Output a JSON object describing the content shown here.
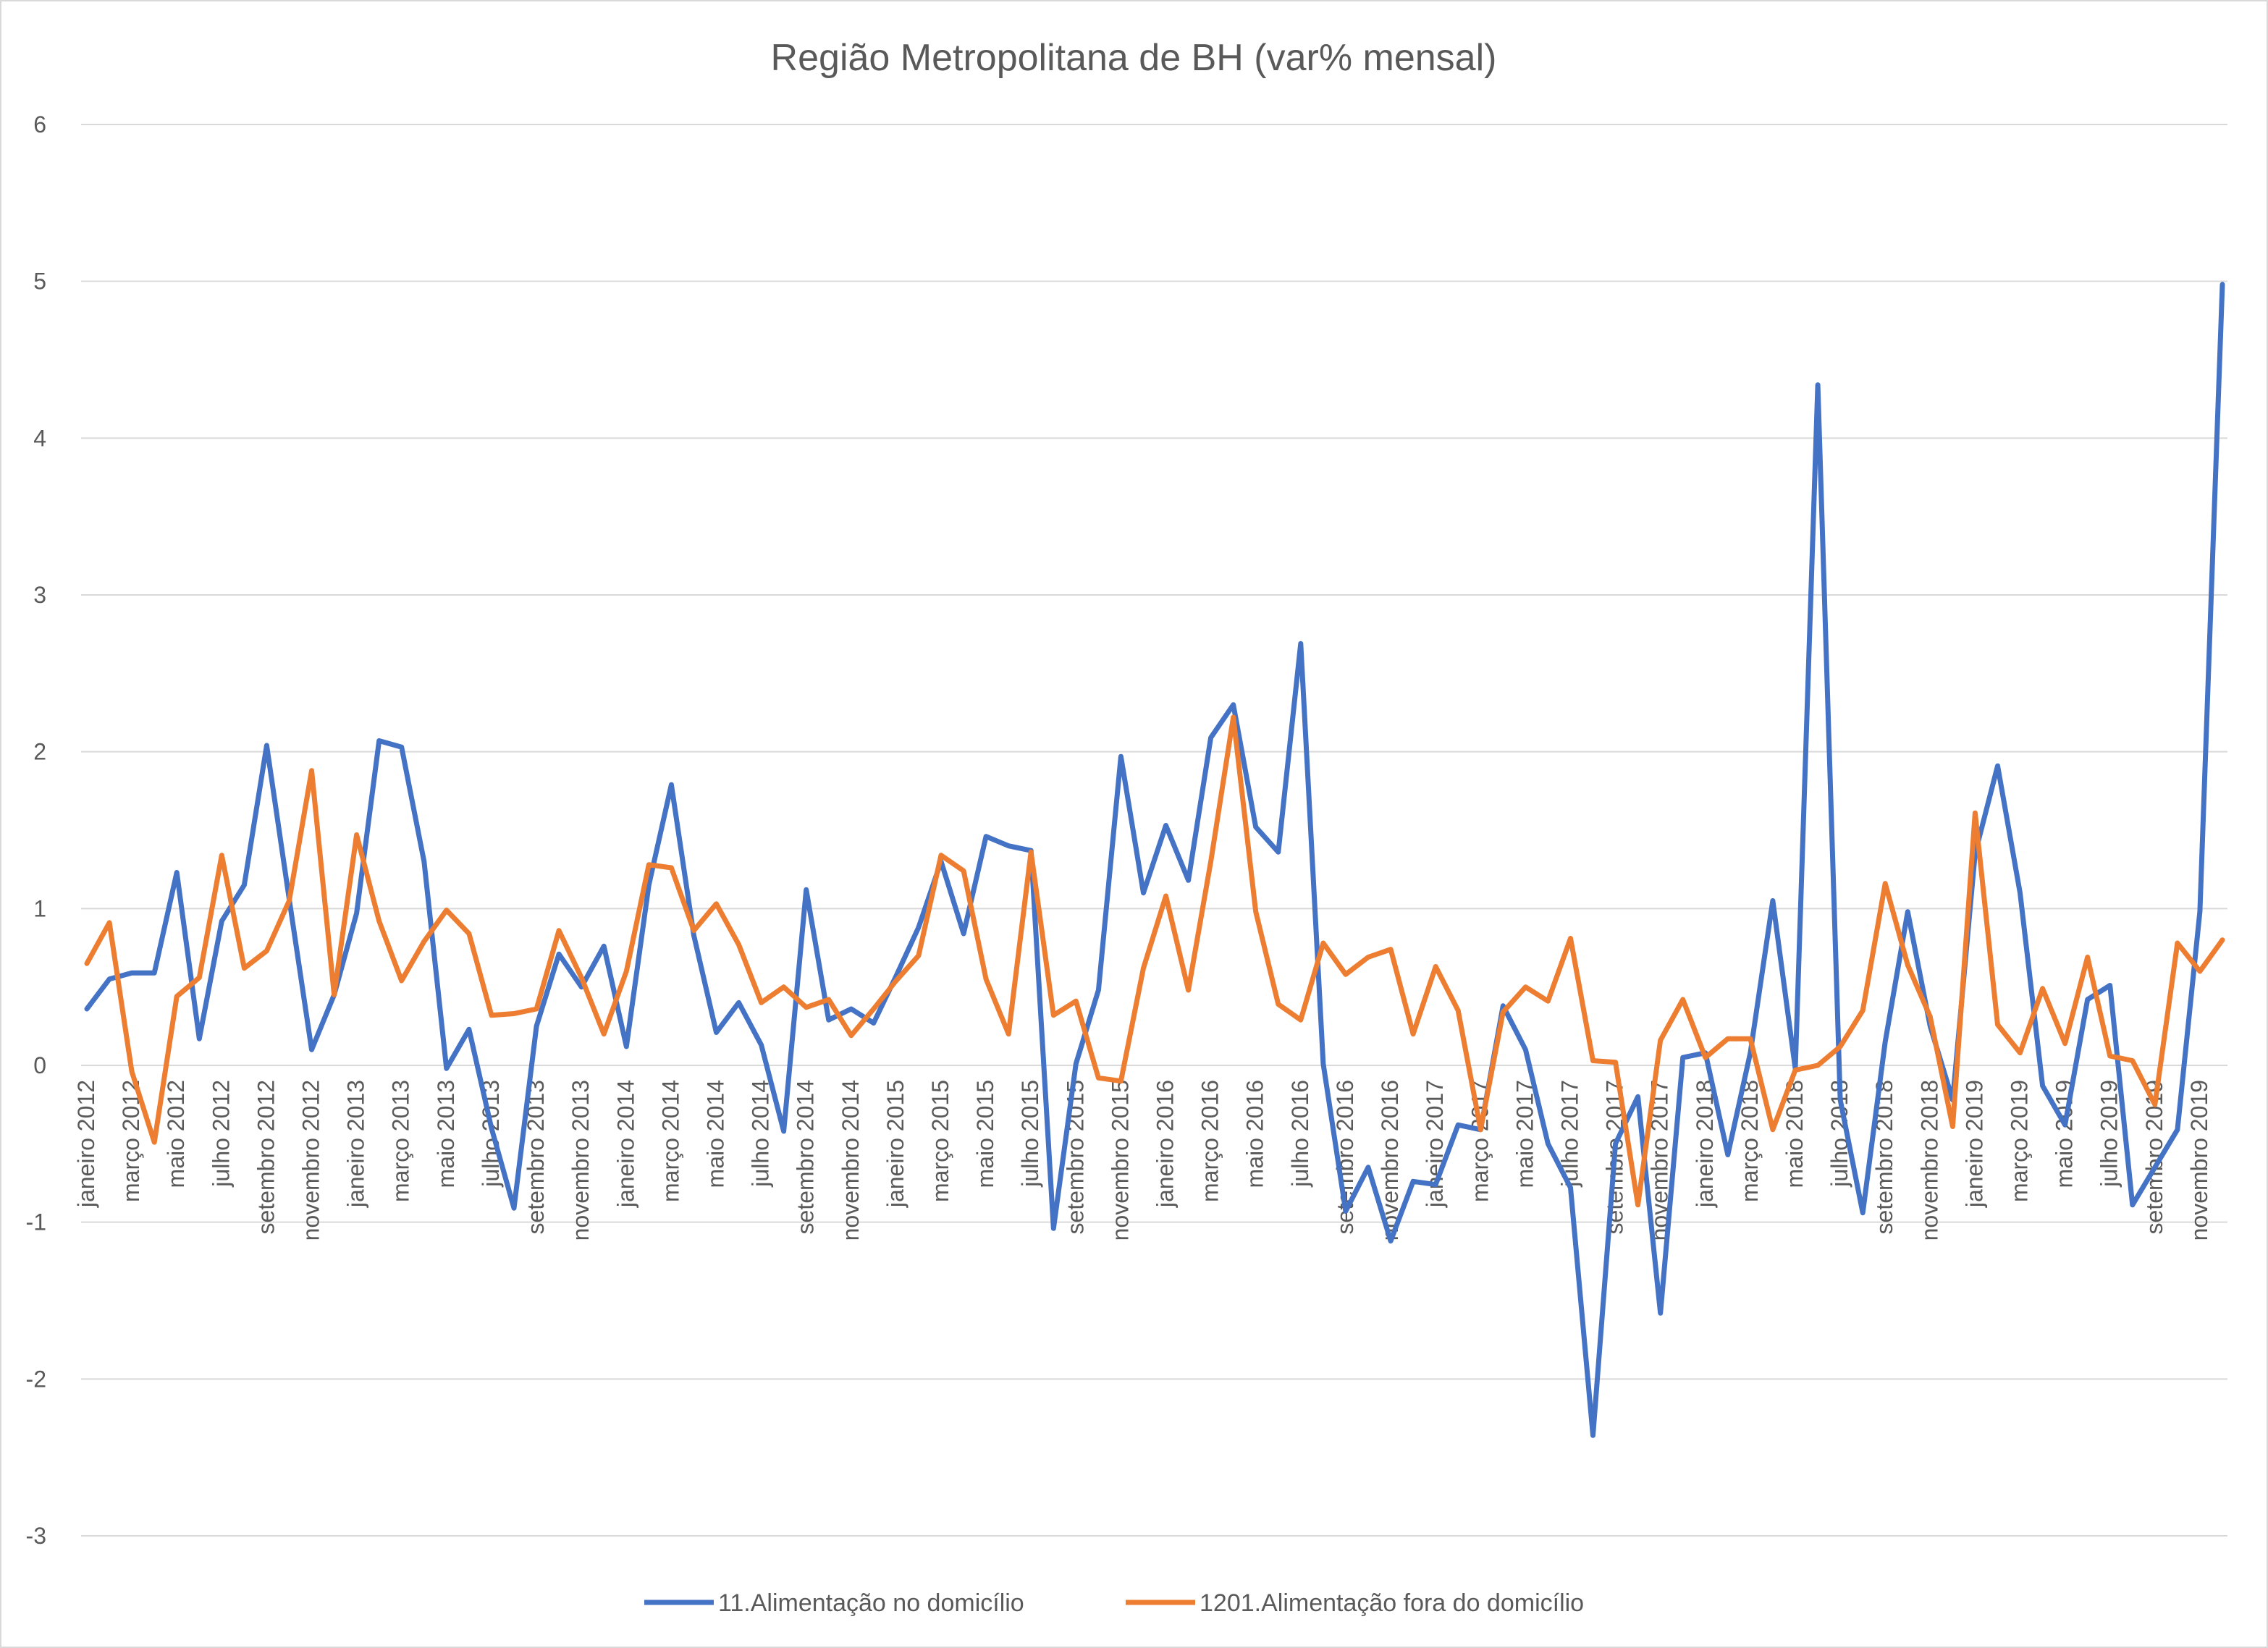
{
  "chart_data": {
    "type": "line",
    "title": "Região Metropolitana de BH (var% mensal)",
    "xlabel": "",
    "ylabel": "",
    "ylim": [
      -3,
      6
    ],
    "yticks": [
      -3,
      -2,
      -1,
      0,
      1,
      2,
      3,
      4,
      5,
      6
    ],
    "grid": "horizontal",
    "legend": "bottom",
    "x": [
      "janeiro 2012",
      "fevereiro 2012",
      "março 2012",
      "abril 2012",
      "maio 2012",
      "junho 2012",
      "julho 2012",
      "agosto 2012",
      "setembro 2012",
      "outubro 2012",
      "novembro 2012",
      "dezembro 2012",
      "janeiro 2013",
      "fevereiro 2013",
      "março 2013",
      "abril 2013",
      "maio 2013",
      "junho 2013",
      "julho 2013",
      "agosto 2013",
      "setembro 2013",
      "outubro 2013",
      "novembro 2013",
      "dezembro 2013",
      "janeiro 2014",
      "fevereiro 2014",
      "março 2014",
      "abril 2014",
      "maio 2014",
      "junho 2014",
      "julho 2014",
      "agosto 2014",
      "setembro 2014",
      "outubro 2014",
      "novembro 2014",
      "dezembro 2014",
      "janeiro 2015",
      "fevereiro 2015",
      "março 2015",
      "abril 2015",
      "maio 2015",
      "junho 2015",
      "julho 2015",
      "agosto 2015",
      "setembro 2015",
      "outubro 2015",
      "novembro 2015",
      "dezembro 2015",
      "janeiro 2016",
      "fevereiro 2016",
      "março 2016",
      "abril 2016",
      "maio 2016",
      "junho 2016",
      "julho 2016",
      "agosto 2016",
      "setembro 2016",
      "outubro 2016",
      "novembro 2016",
      "dezembro 2016",
      "janeiro 2017",
      "fevereiro 2017",
      "março 2017",
      "abril 2017",
      "maio 2017",
      "junho 2017",
      "julho 2017",
      "agosto 2017",
      "setembro 2017",
      "outubro 2017",
      "novembro 2017",
      "dezembro 2017",
      "janeiro 2018",
      "fevereiro 2018",
      "março 2018",
      "abril 2018",
      "maio 2018",
      "junho 2018",
      "julho 2018",
      "agosto 2018",
      "setembro 2018",
      "outubro 2018",
      "novembro 2018",
      "dezembro 2018",
      "janeiro 2019",
      "fevereiro 2019",
      "março 2019",
      "abril 2019",
      "maio 2019",
      "junho 2019",
      "julho 2019",
      "agosto 2019",
      "setembro 2019",
      "outubro 2019",
      "novembro 2019",
      "dezembro 2019"
    ],
    "xtick_labels": [
      "janeiro 2012",
      "março 2012",
      "maio 2012",
      "julho 2012",
      "setembro 2012",
      "novembro 2012",
      "janeiro 2013",
      "março 2013",
      "maio 2013",
      "julho 2013",
      "setembro 2013",
      "novembro 2013",
      "janeiro 2014",
      "março 2014",
      "maio 2014",
      "julho 2014",
      "setembro 2014",
      "novembro 2014",
      "janeiro 2015",
      "março 2015",
      "maio 2015",
      "julho 2015",
      "setembro 2015",
      "novembro 2015",
      "janeiro 2016",
      "março 2016",
      "maio 2016",
      "julho 2016",
      "setembro 2016",
      "novembro 2016",
      "janeiro 2017",
      "março 2017",
      "maio 2017",
      "julho 2017",
      "setembro 2017",
      "novembro 2017",
      "janeiro 2018",
      "março 2018",
      "maio 2018",
      "julho 2018",
      "setembro 2018",
      "novembro 2018",
      "janeiro 2019",
      "março 2019",
      "maio 2019",
      "julho 2019",
      "setembro 2019",
      "novembro 2019"
    ],
    "series": [
      {
        "name": "11.Alimentação no domicílio",
        "color": "#4472C4",
        "values": [
          0.36,
          0.55,
          0.59,
          0.59,
          1.23,
          0.17,
          0.92,
          1.15,
          2.04,
          1.06,
          0.1,
          0.45,
          0.97,
          2.07,
          2.03,
          1.3,
          -0.02,
          0.23,
          -0.4,
          -0.91,
          0.25,
          0.71,
          0.5,
          0.76,
          0.12,
          1.15,
          1.79,
          0.83,
          0.21,
          0.4,
          0.13,
          -0.42,
          1.12,
          0.29,
          0.36,
          0.27,
          0.57,
          0.88,
          1.3,
          0.84,
          1.46,
          1.4,
          1.37,
          -1.04,
          0.01,
          0.48,
          1.97,
          1.1,
          1.53,
          1.18,
          2.09,
          2.3,
          1.52,
          1.36,
          2.69,
          0.01,
          -0.93,
          -0.65,
          -1.12,
          -0.74,
          -0.76,
          -0.38,
          -0.41,
          0.38,
          0.1,
          -0.5,
          -0.78,
          -2.36,
          -0.5,
          -0.2,
          -1.58,
          0.05,
          0.08,
          -0.57,
          0.08,
          1.05,
          -0.02,
          4.34,
          -0.22,
          -0.94,
          0.15,
          0.98,
          0.25,
          -0.22,
          1.35,
          1.91,
          1.1,
          -0.13,
          -0.38,
          0.42,
          0.51,
          -0.89,
          -0.65,
          -0.41,
          0.98,
          4.98
        ]
      },
      {
        "name": "1201.Alimentação fora do domicílio",
        "color": "#ED7D31",
        "values": [
          0.65,
          0.91,
          -0.04,
          -0.49,
          0.44,
          0.56,
          1.34,
          0.62,
          0.73,
          1.05,
          1.88,
          0.45,
          1.47,
          0.92,
          0.54,
          0.79,
          0.99,
          0.84,
          0.32,
          0.33,
          0.36,
          0.86,
          0.56,
          0.2,
          0.6,
          1.28,
          1.26,
          0.86,
          1.03,
          0.77,
          0.4,
          0.5,
          0.37,
          0.42,
          0.19,
          0.36,
          0.54,
          0.7,
          1.34,
          1.24,
          0.55,
          0.2,
          1.36,
          0.32,
          0.41,
          -0.08,
          -0.1,
          0.62,
          1.08,
          0.48,
          1.3,
          2.22,
          0.98,
          0.39,
          0.29,
          0.78,
          0.58,
          0.69,
          0.74,
          0.2,
          0.63,
          0.35,
          -0.41,
          0.34,
          0.5,
          0.41,
          0.81,
          0.03,
          0.02,
          -0.89,
          0.16,
          0.42,
          0.05,
          0.17,
          0.17,
          -0.41,
          -0.03,
          0.0,
          0.12,
          0.35,
          1.16,
          0.64,
          0.31,
          -0.39,
          1.61,
          0.26,
          0.08,
          0.49,
          0.14,
          0.69,
          0.06,
          0.03,
          -0.25,
          0.78,
          0.6,
          0.8
        ]
      }
    ]
  }
}
